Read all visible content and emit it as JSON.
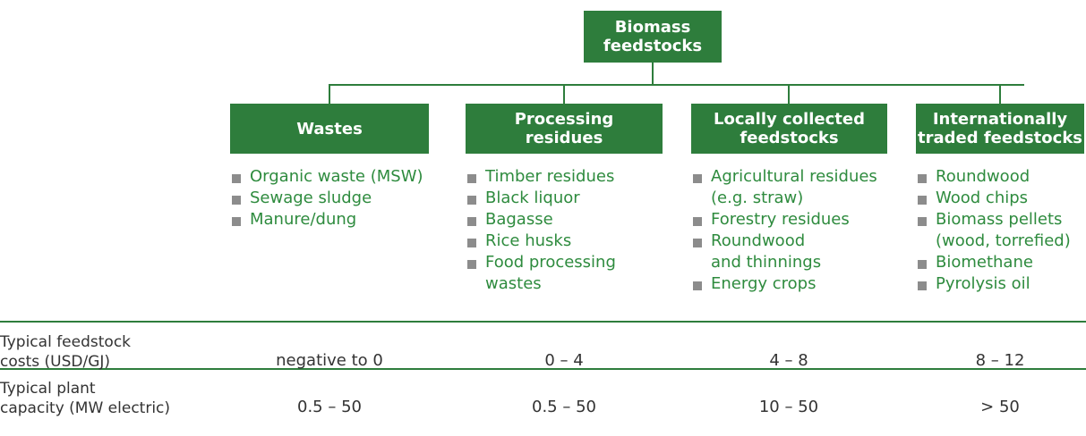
{
  "root": {
    "label": "Biomass feedstocks"
  },
  "categories": [
    {
      "label": "Wastes",
      "items": [
        "Organic waste (MSW)",
        "Sewage sludge",
        "Manure/dung"
      ]
    },
    {
      "label": "Processing\nresidues",
      "items": [
        "Timber residues",
        "Black liquor",
        "Bagasse",
        "Rice husks",
        "Food processing\nwastes"
      ]
    },
    {
      "label": "Locally collected\nfeedstocks",
      "items": [
        "Agricultural residues\n(e.g. straw)",
        "Forestry residues",
        "Roundwood\nand thinnings",
        "Energy crops"
      ]
    },
    {
      "label": "Internationally\ntraded feedstocks",
      "items": [
        "Roundwood",
        "Wood chips",
        "Biomass pellets\n(wood, torrefied)",
        "Biomethane",
        "Pyrolysis oil"
      ]
    }
  ],
  "table": {
    "rows": [
      {
        "label": "Typical feedstock\ncosts (USD/GJ)",
        "values": [
          "negative to 0",
          "0 – 4",
          "4 – 8",
          "8 – 12"
        ]
      },
      {
        "label": "Typical plant\ncapacity (MW electric)",
        "values": [
          "0.5 – 50",
          "0.5 – 50",
          "10 – 50",
          "> 50"
        ]
      }
    ]
  }
}
